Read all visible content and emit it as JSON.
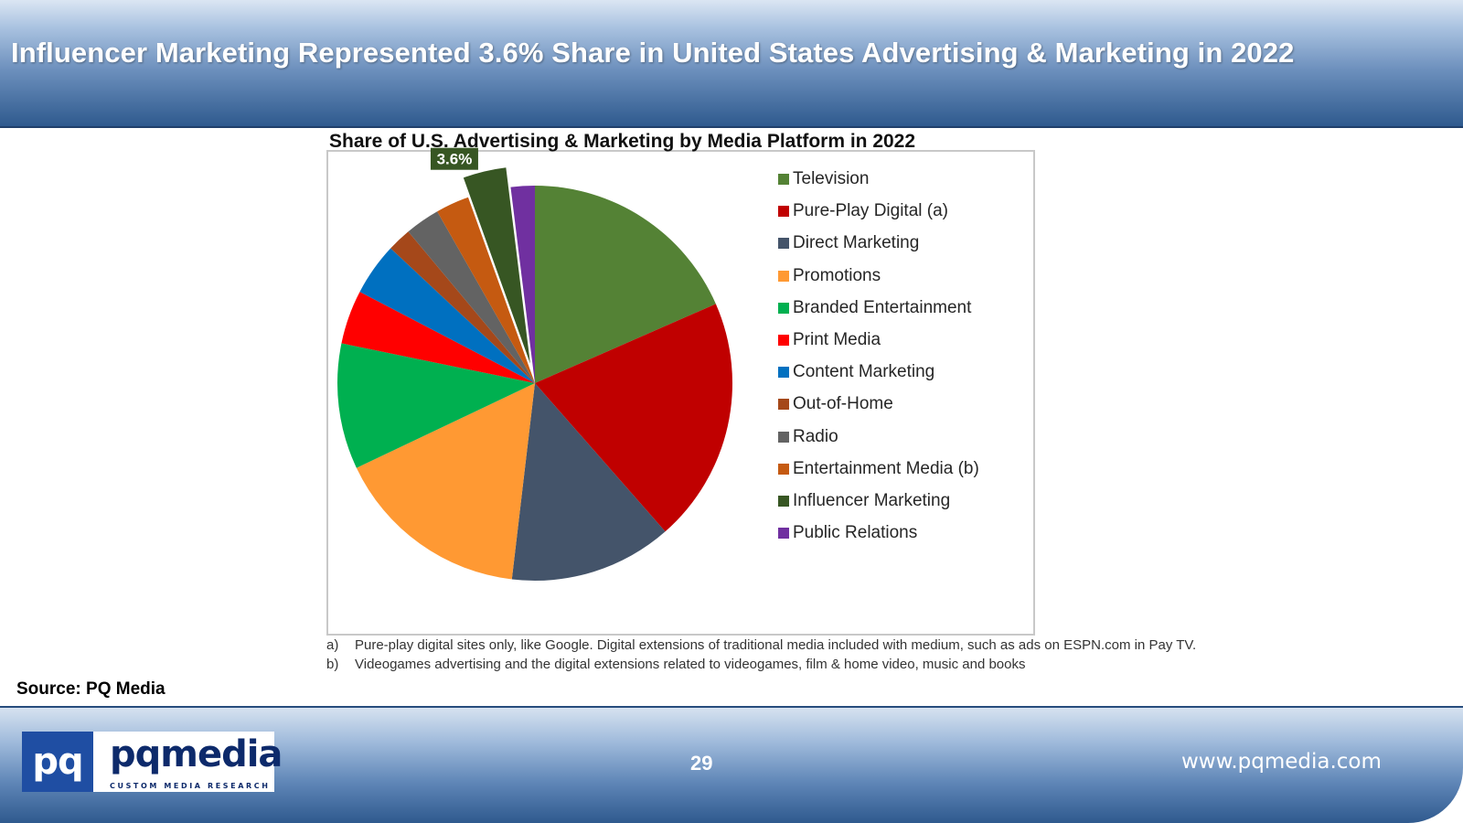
{
  "header": {
    "title": "Influencer Marketing Represented 3.6% Share in United States Advertising & Marketing in 2022"
  },
  "chart_data": {
    "type": "pie",
    "title": "Share of U.S. Advertising & Marketing by Media Platform in 2022",
    "categories": [
      "Television",
      "Pure-Play Digital (a)",
      "Direct Marketing",
      "Promotions",
      "Branded Entertainment",
      "Print Media",
      "Content Marketing",
      "Out-of-Home",
      "Radio",
      "Entertainment Media (b)",
      "Influencer Marketing",
      "Public Relations"
    ],
    "values": [
      18.8,
      20.5,
      13.6,
      16.4,
      10.5,
      4.5,
      4.4,
      2.0,
      2.9,
      2.8,
      3.6,
      2.0
    ],
    "colors": [
      "#548235",
      "#c00000",
      "#44546a",
      "#ff9933",
      "#00b050",
      "#ff0000",
      "#0070c0",
      "#a5481a",
      "#636363",
      "#c55a11",
      "#375623",
      "#7030a0"
    ],
    "exploded_slice": "Influencer Marketing",
    "data_labels": [
      {
        "category": "Influencer Marketing",
        "text": "3.6%"
      }
    ],
    "legend_position": "right"
  },
  "notes": [
    {
      "letter": "a)",
      "text": "Pure-play digital sites only, like Google. Digital extensions of traditional media included with medium, such as ads on ESPN.com in Pay TV."
    },
    {
      "letter": "b)",
      "text": "Videogames advertising and the digital extensions related to videogames, film & home video, music and books"
    }
  ],
  "source": "Source: PQ Media",
  "footer": {
    "logo_mark": "pq",
    "logo_word": "pqmedia",
    "logo_tagline": "CUSTOM MEDIA RESEARCH",
    "page_number": "29",
    "website": "www.pqmedia.com"
  }
}
